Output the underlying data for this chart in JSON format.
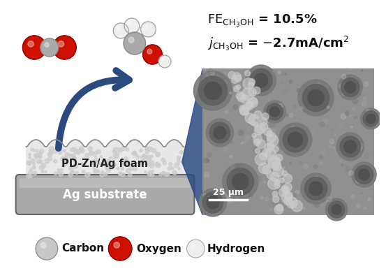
{
  "bg_color": "#ffffff",
  "fig_width": 5.53,
  "fig_height": 3.88,
  "dpi": 100,
  "label_carbon": "Carbon",
  "label_oxygen": "Oxygen",
  "label_hydrogen": "Hydrogen",
  "color_carbon": "#aaaaaa",
  "color_carbon_dark": "#888888",
  "color_oxygen": "#cc1100",
  "color_hydrogen": "#eeeeee",
  "color_hydrogen_edge": "#999999",
  "color_ag_substrate": "#aaaaaa",
  "color_foam_body": "#dddddd",
  "color_foam_top": "#e8e8e8",
  "color_arrow": "#2a4a80",
  "color_text": "#111111",
  "substrate_label": "Ag substrate",
  "foam_label": "PD-Zn/Ag foam",
  "scalebar_label": "25 μm",
  "sem_bg": "#888888",
  "sem_pore_color": "#777777",
  "sem_pore_inner": "#555555"
}
